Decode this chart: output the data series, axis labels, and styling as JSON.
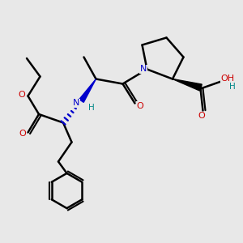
{
  "bg_color": "#e8e8e8",
  "atom_colors": {
    "N": "#0000cc",
    "O": "#cc0000",
    "C": "#000000",
    "H": "#008888"
  },
  "bond_color": "#000000",
  "bond_width": 1.8
}
